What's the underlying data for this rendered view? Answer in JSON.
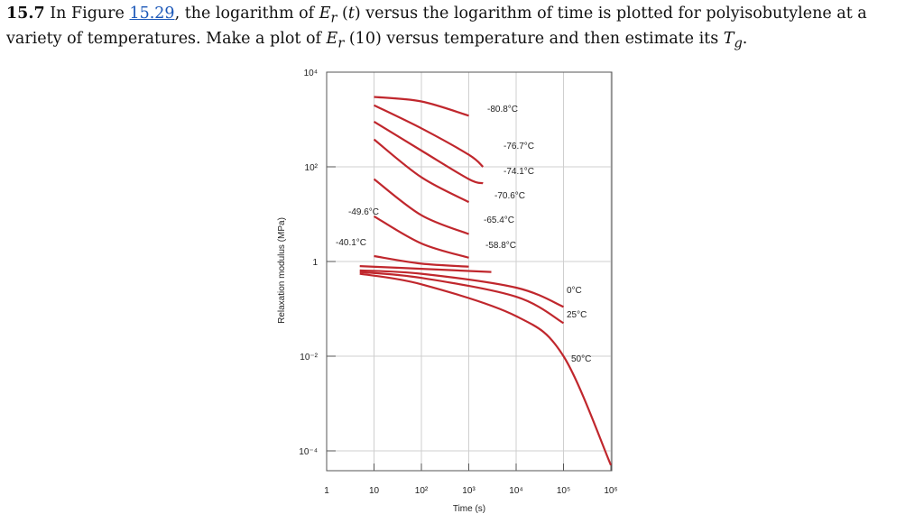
{
  "problem": {
    "number": "15.7",
    "text_before_link": "In Figure ",
    "figure_link": "15.29",
    "text_mid1": ", the logarithm of ",
    "var1_main": "E",
    "var1_sub": "r",
    "text_mid2": " (",
    "var_t": "t",
    "text_mid3": ") versus the logarithm of time is plotted for polyisobutylene at a variety of temperatures. Make a plot of ",
    "var2_main": "E",
    "var2_sub": "r",
    "text_mid4": " (10) versus temperature and then estimate its ",
    "var3_main": "T",
    "var3_sub": "g",
    "text_end": "."
  },
  "chart_data": {
    "type": "line",
    "xlabel": "Time (s)",
    "ylabel": "Relaxation modulus (MPa)",
    "x_scale": "log",
    "y_scale": "log",
    "xlim": [
      1,
      1000000
    ],
    "ylim": [
      0.0001,
      10000
    ],
    "x_ticks": [
      {
        "value": 1,
        "label": "1"
      },
      {
        "value": 10,
        "label": "10"
      },
      {
        "value": 100,
        "label": "10²"
      },
      {
        "value": 1000,
        "label": "10³"
      },
      {
        "value": 10000,
        "label": "10⁴"
      },
      {
        "value": 100000,
        "label": "10⁵"
      },
      {
        "value": 1000000,
        "label": "10⁶"
      }
    ],
    "y_ticks": [
      {
        "value": 10000,
        "label": "10⁴"
      },
      {
        "value": 100,
        "label": "10²"
      },
      {
        "value": 1,
        "label": "1"
      },
      {
        "value": 0.01,
        "label": "10⁻²"
      },
      {
        "value": 0.0001,
        "label": "10⁻⁴"
      }
    ],
    "grid": true,
    "series_color": "#c0272d",
    "series": [
      {
        "name": "-80.8°C",
        "x": [
          10,
          100,
          1000
        ],
        "y": [
          3000,
          2400,
          1200
        ]
      },
      {
        "name": "-76.7°C",
        "x": [
          10,
          100,
          1000,
          2000
        ],
        "y": [
          2000,
          650,
          180,
          100
        ]
      },
      {
        "name": "-74.1°C",
        "x": [
          10,
          100,
          1000,
          2000
        ],
        "y": [
          900,
          220,
          55,
          45
        ]
      },
      {
        "name": "-70.6°C",
        "x": [
          10,
          100,
          1000
        ],
        "y": [
          380,
          60,
          18
        ]
      },
      {
        "name": "-65.4°C",
        "x": [
          10,
          100,
          1000
        ],
        "y": [
          55,
          9.5,
          3.8
        ]
      },
      {
        "name": "-58.8°C",
        "x": [
          10,
          100,
          1000
        ],
        "y": [
          9,
          2.4,
          1.2
        ]
      },
      {
        "name": "-49.6°C",
        "x": [
          10,
          100,
          1000
        ],
        "y": [
          1.3,
          0.9,
          0.78
        ]
      },
      {
        "name": "-40.1°C",
        "x": [
          5,
          100,
          3000
        ],
        "y": [
          0.8,
          0.7,
          0.6
        ]
      },
      {
        "name": "0°C",
        "x": [
          5,
          100,
          10000,
          100000
        ],
        "y": [
          0.65,
          0.55,
          0.28,
          0.11
        ]
      },
      {
        "name": "25°C",
        "x": [
          5,
          100,
          10000,
          100000
        ],
        "y": [
          0.6,
          0.45,
          0.18,
          0.05
        ]
      },
      {
        "name": "50°C",
        "x": [
          5,
          100,
          10000,
          100000,
          1000000
        ],
        "y": [
          0.55,
          0.33,
          0.07,
          0.01,
          5e-05
        ]
      }
    ],
    "annotations": [
      "-80.8°C",
      "-76.7°C",
      "-74.1°C",
      "-70.6°C",
      "-65.4°C",
      "-58.8°C",
      "-49.6°C",
      "-40.1°C",
      "0°C",
      "25°C",
      "50°C"
    ]
  }
}
